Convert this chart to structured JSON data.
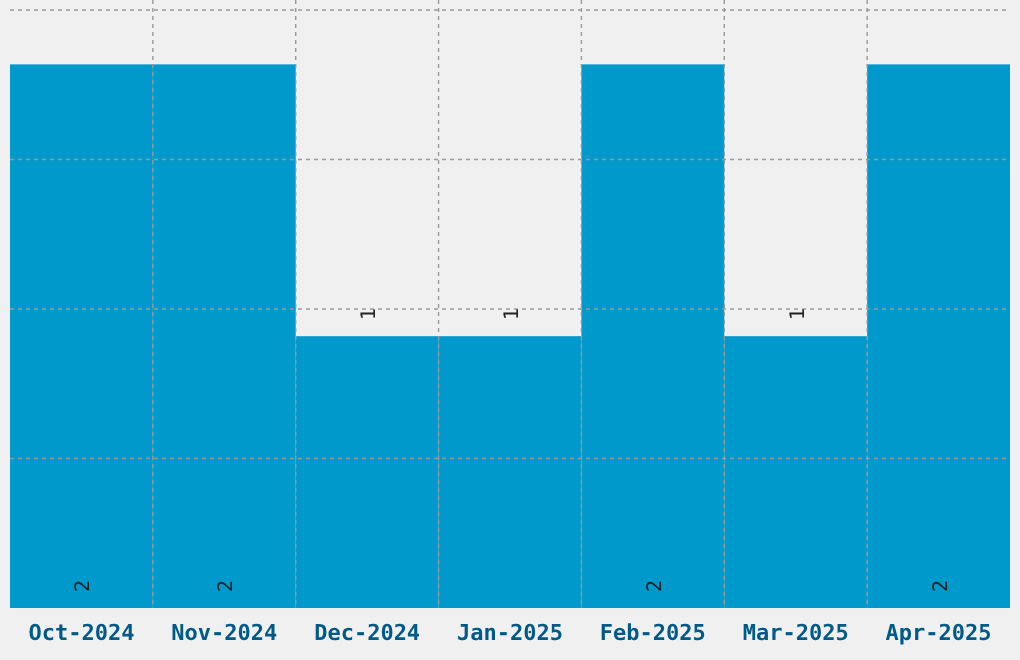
{
  "chart_data": {
    "type": "bar",
    "categories": [
      "Oct-2024",
      "Nov-2024",
      "Dec-2024",
      "Jan-2025",
      "Feb-2025",
      "Mar-2025",
      "Apr-2025"
    ],
    "values": [
      2,
      2,
      1,
      1,
      2,
      1,
      2
    ],
    "color": "#0099cc",
    "ylim": [
      0,
      2.2
    ],
    "yticks": [
      {
        "value": 0.55,
        "label": null
      },
      {
        "value": 1.1,
        "label": null
      },
      {
        "value": 1.65,
        "label": null
      },
      {
        "value": 2.2,
        "label": null
      }
    ],
    "tick_labels": "x",
    "grid": true,
    "data_labels": true
  }
}
